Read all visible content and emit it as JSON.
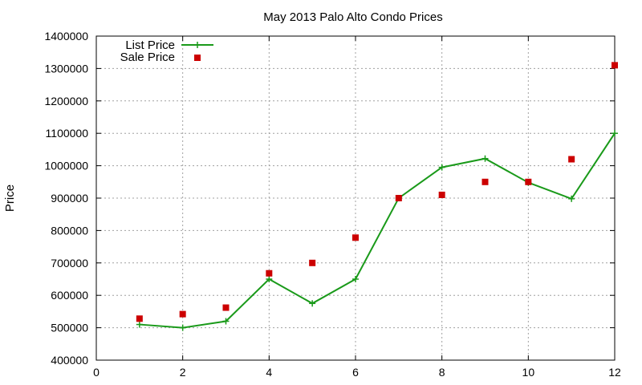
{
  "chart_data": {
    "type": "line",
    "title": "May 2013 Palo Alto Condo Prices",
    "xlabel": "",
    "ylabel": "Price",
    "xlim": [
      0,
      12
    ],
    "ylim": [
      400000,
      1400000
    ],
    "xticks": [
      0,
      2,
      4,
      6,
      8,
      10,
      12
    ],
    "yticks": [
      400000,
      500000,
      600000,
      700000,
      800000,
      900000,
      1000000,
      1100000,
      1200000,
      1300000,
      1400000
    ],
    "grid": true,
    "legend_position": "top-left",
    "series": [
      {
        "name": "List Price",
        "style": "line-with-plus-markers",
        "color": "#1a9a1a",
        "x": [
          1,
          2,
          3,
          4,
          5,
          6,
          7,
          8,
          9,
          10,
          11,
          12
        ],
        "values": [
          510000,
          500000,
          520000,
          650000,
          575000,
          650000,
          900000,
          995000,
          1022000,
          948000,
          898000,
          1100000
        ]
      },
      {
        "name": "Sale Price",
        "style": "square-markers",
        "color": "#cc0000",
        "x": [
          1,
          2,
          3,
          4,
          5,
          6,
          7,
          8,
          9,
          10,
          11,
          12
        ],
        "values": [
          528000,
          542000,
          562000,
          668000,
          700000,
          778000,
          900000,
          910000,
          950000,
          950000,
          1020000,
          1310000
        ]
      }
    ]
  }
}
